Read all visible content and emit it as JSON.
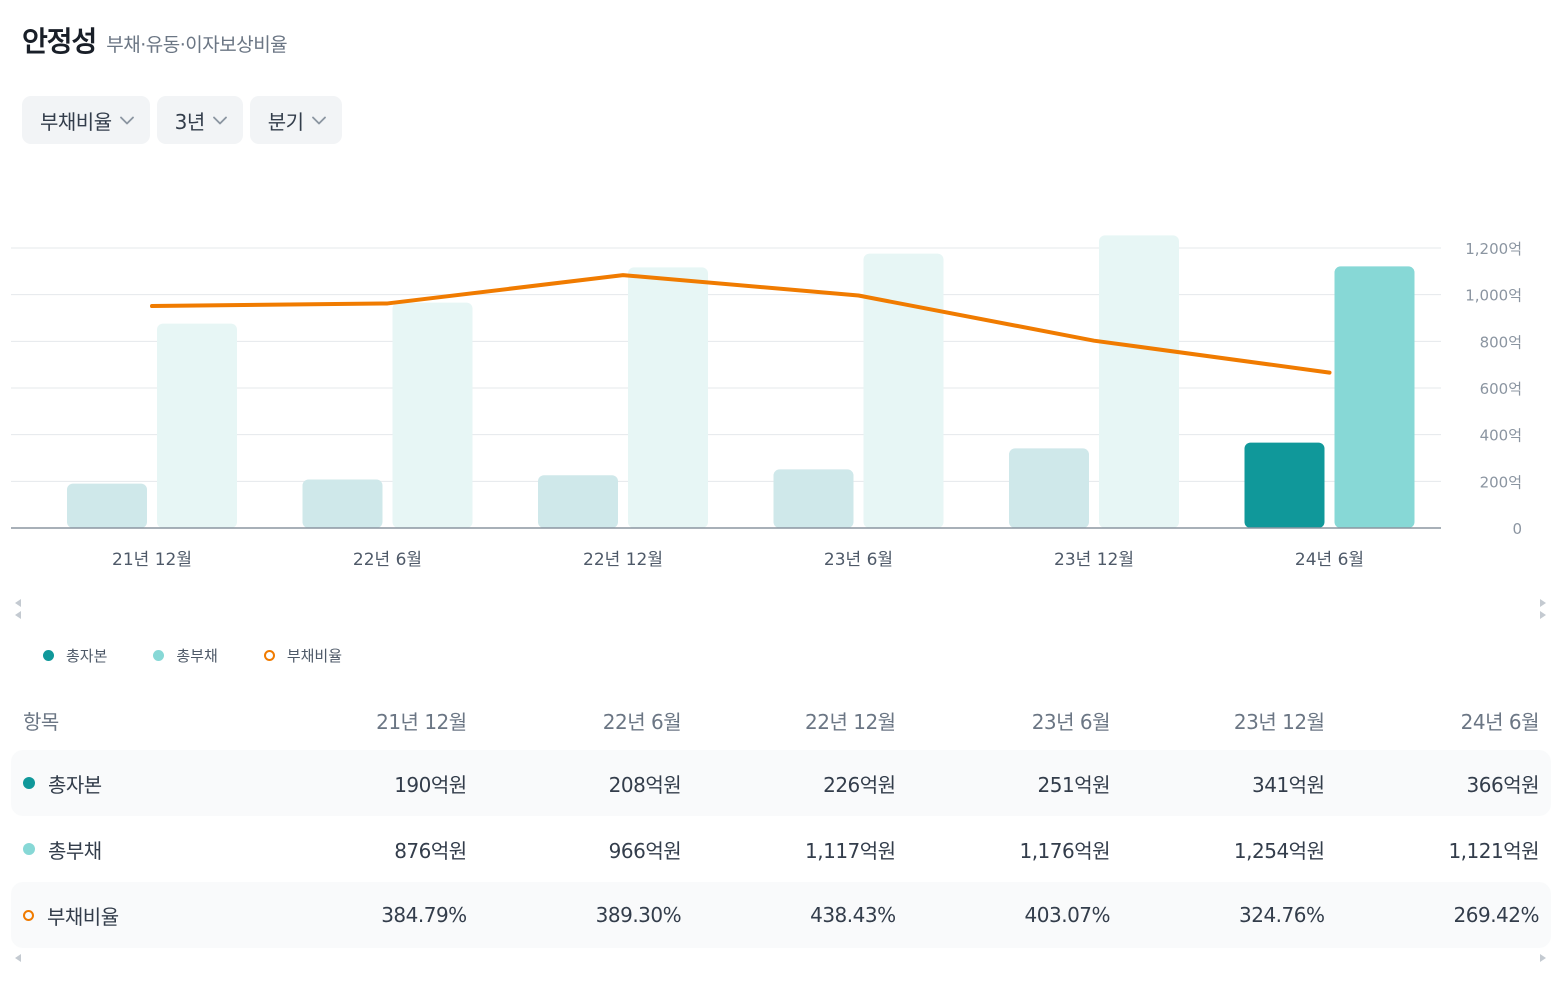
{
  "header": {
    "title": "안정성",
    "subtitle": "부채·유동·이자보상비율"
  },
  "filters": [
    {
      "label": "부채비율"
    },
    {
      "label": "3년"
    },
    {
      "label": "분기"
    }
  ],
  "colors": {
    "equity": "#10989a",
    "equity_faded": "#cfe8ea",
    "liabilities": "#87d8d6",
    "liabilities_faded": "#e7f6f5",
    "ratio": "#f07b00",
    "grid": "#e5e8eb",
    "axis": "#8b95a1"
  },
  "chart_data": {
    "type": "bar",
    "categories": [
      "21년 12월",
      "22년 6월",
      "22년 12월",
      "23년 6월",
      "23년 12월",
      "24년 6월"
    ],
    "highlighted_index": 5,
    "series": [
      {
        "name": "총자본",
        "unit": "억원",
        "values": [
          190,
          208,
          226,
          251,
          341,
          366
        ]
      },
      {
        "name": "총부채",
        "unit": "억원",
        "values": [
          876,
          966,
          1117,
          1176,
          1254,
          1121
        ]
      },
      {
        "name": "부채비율",
        "type": "line",
        "unit": "%",
        "values": [
          384.79,
          389.3,
          438.43,
          403.07,
          324.76,
          269.42
        ]
      }
    ],
    "yaxis": {
      "ticks": [
        0,
        200,
        400,
        600,
        800,
        1000,
        1200
      ],
      "tick_labels": [
        "0",
        "200억",
        "400억",
        "600억",
        "800억",
        "1,000억",
        "1,200억"
      ],
      "ylim": [
        0,
        1200
      ],
      "position": "right"
    },
    "legend": [
      "총자본",
      "총부채",
      "부채비율"
    ],
    "legend_position": "bottom-left"
  },
  "table": {
    "header_label": "항목",
    "columns": [
      "21년 12월",
      "22년 6월",
      "22년 12월",
      "23년 6월",
      "23년 12월",
      "24년 6월"
    ],
    "rows": [
      {
        "label": "총자본",
        "values": [
          "190억원",
          "208억원",
          "226억원",
          "251억원",
          "341억원",
          "366억원"
        ]
      },
      {
        "label": "총부채",
        "values": [
          "876억원",
          "966억원",
          "1,117억원",
          "1,176억원",
          "1,254억원",
          "1,121억원"
        ]
      },
      {
        "label": "부채비율",
        "values": [
          "384.79%",
          "389.30%",
          "438.43%",
          "403.07%",
          "324.76%",
          "269.42%"
        ]
      }
    ]
  }
}
